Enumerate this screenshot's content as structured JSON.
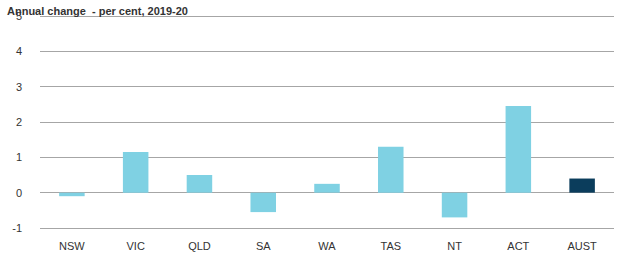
{
  "chart_data": {
    "type": "bar",
    "title": "Annual change  - per cent, 2019-20",
    "categories": [
      "NSW",
      "VIC",
      "QLD",
      "SA",
      "WA",
      "TAS",
      "NT",
      "ACT",
      "AUST"
    ],
    "values": [
      -0.1,
      1.15,
      0.5,
      -0.55,
      0.25,
      1.3,
      -0.7,
      2.45,
      0.4
    ],
    "colors": [
      "#7fd1e3",
      "#7fd1e3",
      "#7fd1e3",
      "#7fd1e3",
      "#7fd1e3",
      "#7fd1e3",
      "#7fd1e3",
      "#7fd1e3",
      "#0b3d5c"
    ],
    "ylim": [
      -1,
      5
    ],
    "yticks": [
      -1,
      0,
      1,
      2,
      3,
      4,
      5
    ],
    "grid": true
  }
}
